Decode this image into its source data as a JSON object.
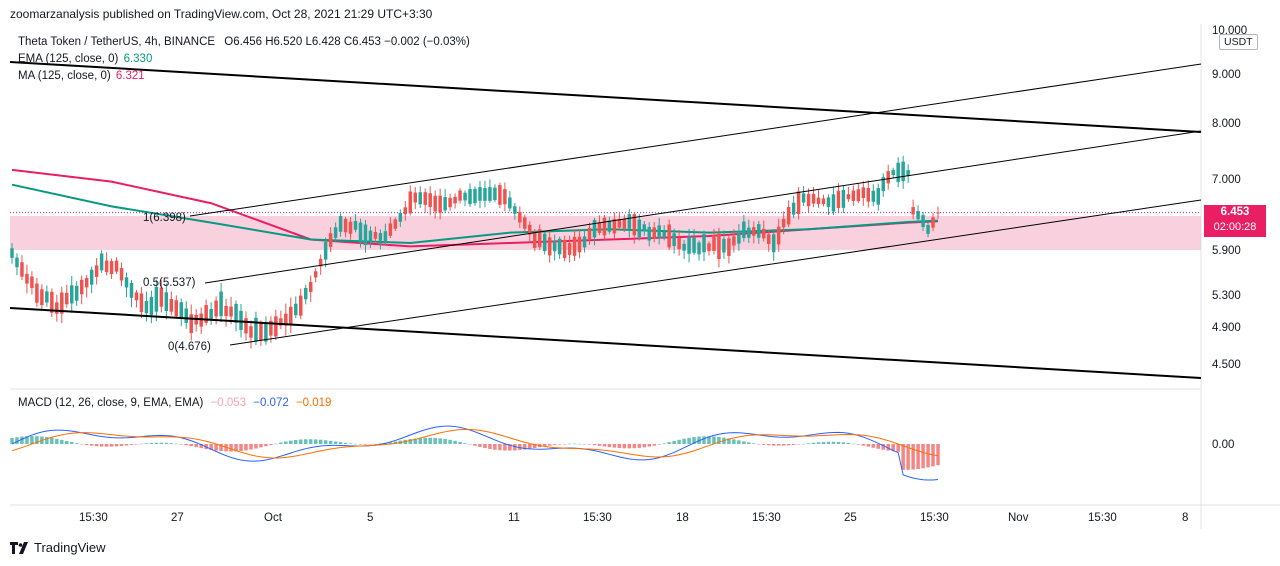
{
  "header": {
    "publisher": "zoomarzanalysis published on TradingView.com, Oct 28, 2021 21:29 UTC+3:30"
  },
  "legend": {
    "symbol": "Theta Token / TetherUS, 4h, BINANCE",
    "ohlc": "O6.456  H6.520  L6.428  C6.453  −0.002 (−0.03%)",
    "ema_label": "EMA (125, close, 0)",
    "ema_value": "6.330",
    "ma_label": "MA (125, close, 0)",
    "ma_value": "6.321"
  },
  "macd_legend": {
    "label": "MACD (12, 26, close, 9, EMA, EMA)",
    "hist": "−0.053",
    "macd": "−0.072",
    "signal": "−0.019"
  },
  "price_axis": {
    "currency": "USDT",
    "current_price": "6.453",
    "countdown": "02:00:28",
    "ticks": [
      "10.000",
      "9.000",
      "8.000",
      "7.000",
      "5.900",
      "5.300",
      "4.900",
      "4.500"
    ],
    "macd_tick": "0.00"
  },
  "time_axis": [
    "15:30",
    "27",
    "Oct",
    "5",
    "11",
    "15:30",
    "18",
    "15:30",
    "25",
    "15:30",
    "Nov",
    "15:30",
    "8"
  ],
  "fib_labels": [
    "1(6.398)",
    "0.5(5.537)",
    "0(4.676)"
  ],
  "footer": {
    "brand": "TradingView"
  },
  "colors": {
    "ema": "#089981",
    "ma": "#e91e63",
    "up": "#26a69a",
    "down": "#ef5350",
    "zone": "#f8c8d8",
    "macd": "#2962ff",
    "signal": "#ff6d00"
  },
  "chart_data": {
    "type": "candlestick",
    "symbol": "THETAUSDT",
    "interval": "4h",
    "price_range": [
      4.35,
      10.0
    ],
    "current_price": 6.453,
    "zone": [
      5.9,
      6.4
    ],
    "candles_sketch": [
      {
        "i": 0,
        "o": 6.0,
        "c": 5.7
      },
      {
        "i": 3,
        "o": 5.6,
        "c": 5.4
      },
      {
        "i": 6,
        "o": 5.4,
        "c": 5.2
      },
      {
        "i": 9,
        "o": 5.3,
        "c": 5.0
      },
      {
        "i": 12,
        "o": 5.2,
        "c": 5.4
      },
      {
        "i": 15,
        "o": 5.4,
        "c": 5.5
      },
      {
        "i": 18,
        "o": 5.6,
        "c": 5.8
      },
      {
        "i": 21,
        "o": 5.8,
        "c": 5.5
      },
      {
        "i": 24,
        "o": 5.5,
        "c": 5.2
      },
      {
        "i": 27,
        "o": 5.2,
        "c": 5.1
      },
      {
        "i": 30,
        "o": 5.2,
        "c": 5.3
      },
      {
        "i": 33,
        "o": 5.3,
        "c": 5.0
      },
      {
        "i": 36,
        "o": 5.0,
        "c": 4.9
      },
      {
        "i": 39,
        "o": 5.0,
        "c": 5.1
      },
      {
        "i": 42,
        "o": 5.1,
        "c": 5.2
      },
      {
        "i": 45,
        "o": 5.2,
        "c": 4.9
      },
      {
        "i": 48,
        "o": 4.9,
        "c": 4.8
      },
      {
        "i": 51,
        "o": 4.8,
        "c": 4.9
      },
      {
        "i": 54,
        "o": 4.9,
        "c": 5.0
      },
      {
        "i": 57,
        "o": 5.0,
        "c": 5.2
      },
      {
        "i": 60,
        "o": 5.2,
        "c": 5.6
      },
      {
        "i": 63,
        "o": 5.6,
        "c": 6.2
      },
      {
        "i": 66,
        "o": 6.2,
        "c": 6.3
      },
      {
        "i": 69,
        "o": 6.3,
        "c": 6.2
      },
      {
        "i": 72,
        "o": 6.2,
        "c": 6.0
      },
      {
        "i": 75,
        "o": 6.0,
        "c": 6.2
      },
      {
        "i": 78,
        "o": 6.2,
        "c": 6.6
      },
      {
        "i": 81,
        "o": 6.6,
        "c": 6.8
      },
      {
        "i": 84,
        "o": 6.8,
        "c": 6.5
      },
      {
        "i": 87,
        "o": 6.5,
        "c": 6.6
      },
      {
        "i": 90,
        "o": 6.6,
        "c": 6.8
      },
      {
        "i": 93,
        "o": 6.8,
        "c": 6.6
      },
      {
        "i": 96,
        "o": 6.6,
        "c": 6.9
      },
      {
        "i": 99,
        "o": 6.9,
        "c": 6.6
      },
      {
        "i": 102,
        "o": 6.6,
        "c": 6.2
      },
      {
        "i": 105,
        "o": 6.2,
        "c": 5.9
      },
      {
        "i": 108,
        "o": 5.9,
        "c": 6.0
      },
      {
        "i": 111,
        "o": 6.0,
        "c": 5.8
      },
      {
        "i": 114,
        "o": 5.8,
        "c": 6.1
      },
      {
        "i": 117,
        "o": 6.1,
        "c": 6.3
      },
      {
        "i": 120,
        "o": 6.3,
        "c": 6.2
      },
      {
        "i": 123,
        "o": 6.2,
        "c": 6.4
      },
      {
        "i": 126,
        "o": 6.4,
        "c": 6.1
      },
      {
        "i": 129,
        "o": 6.1,
        "c": 6.2
      },
      {
        "i": 132,
        "o": 6.2,
        "c": 6.0
      },
      {
        "i": 135,
        "o": 6.0,
        "c": 5.9
      },
      {
        "i": 138,
        "o": 5.9,
        "c": 6.0
      },
      {
        "i": 141,
        "o": 6.0,
        "c": 5.9
      },
      {
        "i": 144,
        "o": 5.9,
        "c": 6.1
      },
      {
        "i": 147,
        "o": 6.1,
        "c": 6.2
      },
      {
        "i": 150,
        "o": 6.2,
        "c": 6.1
      },
      {
        "i": 153,
        "o": 6.1,
        "c": 6.0
      },
      {
        "i": 156,
        "o": 6.0,
        "c": 6.8
      },
      {
        "i": 159,
        "o": 6.8,
        "c": 6.6
      },
      {
        "i": 162,
        "o": 6.6,
        "c": 6.7
      },
      {
        "i": 165,
        "o": 6.7,
        "c": 6.5
      },
      {
        "i": 168,
        "o": 6.5,
        "c": 6.9
      },
      {
        "i": 171,
        "o": 6.9,
        "c": 6.6
      },
      {
        "i": 174,
        "o": 6.6,
        "c": 6.9
      },
      {
        "i": 177,
        "o": 6.9,
        "c": 7.3
      },
      {
        "i": 180,
        "o": 7.3,
        "c": 6.9
      },
      {
        "i": 181,
        "o": 6.9,
        "c": 6.1
      },
      {
        "i": 184,
        "o": 6.1,
        "c": 6.3
      },
      {
        "i": 186,
        "o": 6.3,
        "c": 6.453
      }
    ],
    "ema_125": [
      {
        "i": 0,
        "v": 6.9
      },
      {
        "i": 20,
        "v": 6.55
      },
      {
        "i": 40,
        "v": 6.3
      },
      {
        "i": 60,
        "v": 6.05
      },
      {
        "i": 80,
        "v": 6.0
      },
      {
        "i": 100,
        "v": 6.15
      },
      {
        "i": 120,
        "v": 6.2
      },
      {
        "i": 140,
        "v": 6.15
      },
      {
        "i": 160,
        "v": 6.2
      },
      {
        "i": 180,
        "v": 6.31
      },
      {
        "i": 186,
        "v": 6.33
      }
    ],
    "ma_125": [
      {
        "i": 0,
        "v": 7.15
      },
      {
        "i": 20,
        "v": 6.95
      },
      {
        "i": 40,
        "v": 6.6
      },
      {
        "i": 60,
        "v": 6.05
      },
      {
        "i": 80,
        "v": 5.95
      },
      {
        "i": 100,
        "v": 6.0
      },
      {
        "i": 120,
        "v": 6.05
      },
      {
        "i": 140,
        "v": 6.1
      },
      {
        "i": 160,
        "v": 6.2
      },
      {
        "i": 180,
        "v": 6.3
      },
      {
        "i": 186,
        "v": 6.32
      }
    ],
    "fibonacci": [
      {
        "level": 1,
        "price": 6.398
      },
      {
        "level": 0.5,
        "price": 5.537
      },
      {
        "level": 0,
        "price": 4.676
      }
    ],
    "macd": {
      "hist": -0.053,
      "macd": -0.072,
      "signal": -0.019,
      "zero_tick": "0.00"
    }
  }
}
